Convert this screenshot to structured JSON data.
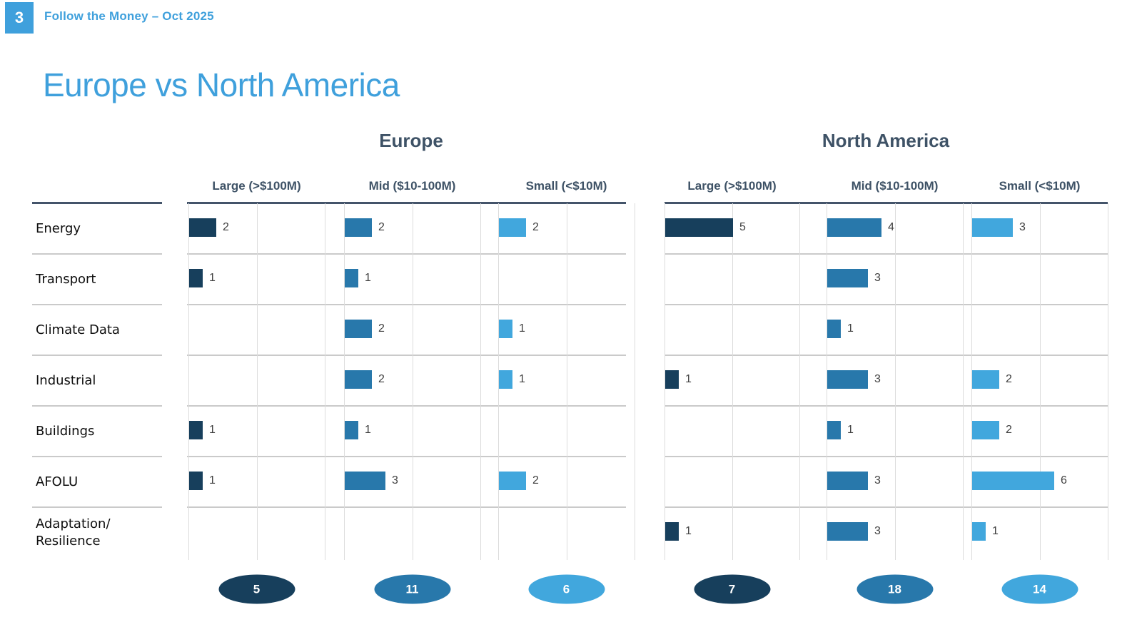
{
  "page": {
    "slide_number": "3",
    "header": "Follow the Money – Oct 2025",
    "title": "Europe vs North America"
  },
  "chart_data": {
    "type": "bar",
    "orientation": "horizontal",
    "xlim": [
      0,
      10
    ],
    "gridlines_x": [
      0,
      5,
      10
    ],
    "categories": [
      "Energy",
      "Transport",
      "Climate Data",
      "Industrial",
      "Buildings",
      "AFOLU",
      "Adaptation/\nResilience"
    ],
    "size_columns": [
      "Large (>$100M)",
      "Mid ($10-100M)",
      "Small (<$10M)"
    ],
    "groups": [
      {
        "title": "Europe",
        "series": [
          {
            "name": "Large (>$100M)",
            "color": "#173F5C",
            "values": [
              2,
              1,
              0,
              0,
              1,
              1,
              0
            ],
            "total": 5
          },
          {
            "name": "Mid ($10-100M)",
            "color": "#2878AB",
            "values": [
              2,
              1,
              2,
              2,
              1,
              3,
              0
            ],
            "total": 11
          },
          {
            "name": "Small (<$10M)",
            "color": "#41A7DD",
            "values": [
              2,
              0,
              1,
              1,
              0,
              2,
              0
            ],
            "total": 6
          }
        ]
      },
      {
        "title": "North America",
        "series": [
          {
            "name": "Large (>$100M)",
            "color": "#173F5C",
            "values": [
              5,
              0,
              0,
              1,
              0,
              0,
              1
            ],
            "total": 7
          },
          {
            "name": "Mid ($10-100M)",
            "color": "#2878AB",
            "values": [
              4,
              3,
              1,
              3,
              1,
              3,
              3
            ],
            "total": 18
          },
          {
            "name": "Small (<$10M)",
            "color": "#41A7DD",
            "values": [
              3,
              0,
              0,
              2,
              2,
              6,
              1
            ],
            "total": 14
          }
        ]
      }
    ]
  },
  "colors": {
    "accent_blue": "#3FA0DC",
    "heading_slate": "#3E5266",
    "large_bar": "#173F5C",
    "mid_bar": "#2878AB",
    "small_bar": "#41A7DD",
    "value_text": "#3F3F3F"
  }
}
